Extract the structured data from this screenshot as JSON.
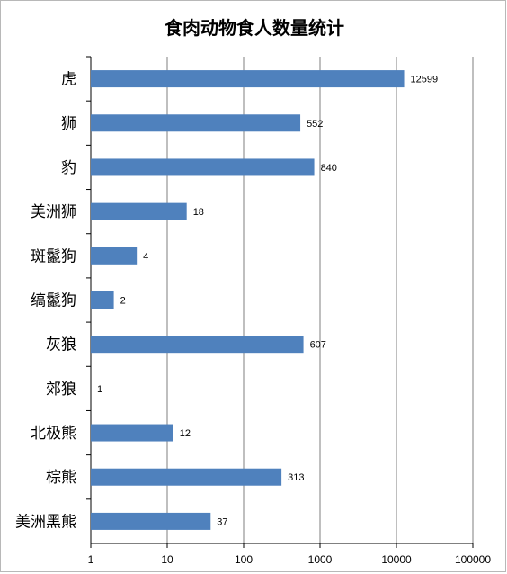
{
  "chart_data": {
    "type": "bar",
    "orientation": "horizontal",
    "title": "食肉动物食人数量统计",
    "categories": [
      "虎",
      "狮",
      "豹",
      "美洲狮",
      "斑鬣狗",
      "缟鬣狗",
      "灰狼",
      "郊狼",
      "北极熊",
      "棕熊",
      "美洲黑熊"
    ],
    "values": [
      12599,
      552,
      840,
      18,
      4,
      2,
      607,
      1,
      12,
      313,
      37
    ],
    "data_labels": [
      "12599",
      "552",
      "840",
      "18",
      "4",
      "2",
      "607",
      "1",
      "12",
      "313",
      "37"
    ],
    "x_scale": "log10",
    "xlim": [
      1,
      100000
    ],
    "x_ticks": [
      "1",
      "10",
      "100",
      "1000",
      "10000",
      "100000"
    ],
    "grid": "vertical",
    "legend": "none",
    "bar_color": "#4f81bd",
    "grid_color": "#7f7f7f"
  }
}
